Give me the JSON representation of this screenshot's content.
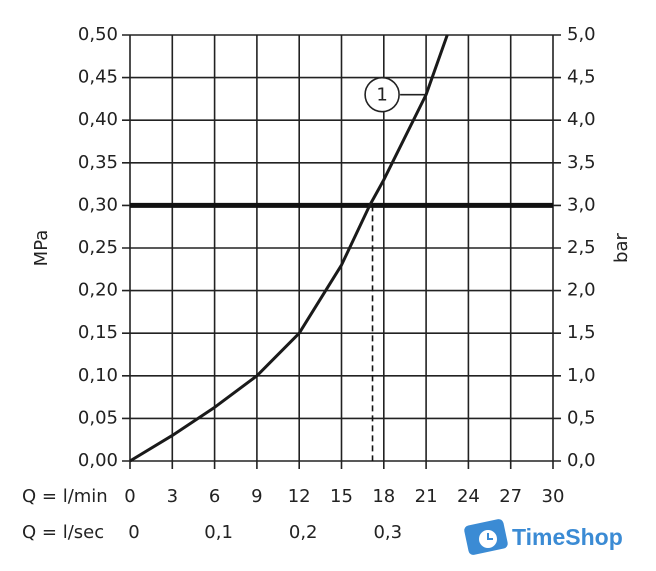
{
  "chart_data": {
    "type": "line",
    "x": [
      0,
      3,
      6,
      9,
      12,
      15,
      17,
      18,
      21,
      22.5
    ],
    "y": [
      0,
      0.03,
      0.063,
      0.1,
      0.15,
      0.23,
      0.3,
      0.33,
      0.43,
      0.5
    ],
    "color": "#1a1a1a",
    "xlabel": "Q = l/min",
    "x2label": "Q = l/sec",
    "ylabel": "MPa",
    "y2label": "bar",
    "xlim": [
      0,
      30
    ],
    "xticks": [
      0,
      3,
      6,
      9,
      12,
      15,
      18,
      21,
      24,
      27,
      30
    ],
    "x2lim": [
      0,
      0.5
    ],
    "x2ticks": [
      0,
      {
        "value": 0.1,
        "label": "0,1"
      },
      {
        "value": 0.2,
        "label": "0,2"
      },
      {
        "value": 0.3,
        "label": "0,3"
      }
    ],
    "ylim": [
      0,
      0.5
    ],
    "yticks": [
      {
        "value": 0,
        "label": "0,00"
      },
      {
        "value": 0.05,
        "label": "0,05"
      },
      {
        "value": 0.1,
        "label": "0,10"
      },
      {
        "value": 0.15,
        "label": "0,15"
      },
      {
        "value": 0.2,
        "label": "0,20"
      },
      {
        "value": 0.25,
        "label": "0,25"
      },
      {
        "value": 0.3,
        "label": "0,30"
      },
      {
        "value": 0.35,
        "label": "0,35"
      },
      {
        "value": 0.4,
        "label": "0,40"
      },
      {
        "value": 0.45,
        "label": "0,45"
      },
      {
        "value": 0.5,
        "label": "0,50"
      }
    ],
    "y2lim": [
      0,
      5
    ],
    "y2ticks": [
      {
        "value": 0,
        "label": "0,0"
      },
      {
        "value": 0.5,
        "label": "0,5"
      },
      {
        "value": 1,
        "label": "1,0"
      },
      {
        "value": 1.5,
        "label": "1,5"
      },
      {
        "value": 2,
        "label": "2,0"
      },
      {
        "value": 2.5,
        "label": "2,5"
      },
      {
        "value": 3,
        "label": "3,0"
      },
      {
        "value": 3.5,
        "label": "3,5"
      },
      {
        "value": 4,
        "label": "4,0"
      },
      {
        "value": 4.5,
        "label": "4,5"
      },
      {
        "value": 5,
        "label": "5,0"
      }
    ],
    "grid": true,
    "hline": 0.3,
    "vline": 17.2,
    "annotation": {
      "text": "1",
      "x": 21,
      "y": 0.43
    },
    "watermark": "TimeShop"
  }
}
